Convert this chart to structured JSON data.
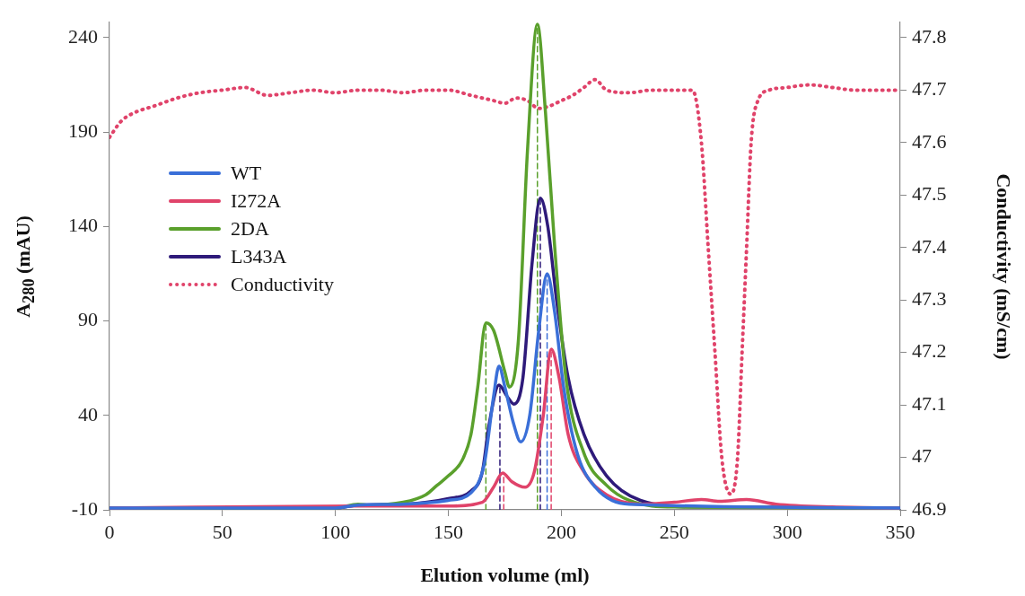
{
  "chart_data": {
    "type": "line",
    "xlabel": "Elution volume (ml)",
    "ylabel": "A$_{280}$ (mAU)",
    "y2label": "Conductivity (mS/cm)",
    "xlim": [
      0,
      350
    ],
    "xticks": [
      0,
      50,
      100,
      150,
      200,
      250,
      300,
      350
    ],
    "ylim": [
      -10,
      248
    ],
    "yticks": [
      -10,
      40,
      90,
      140,
      190,
      240
    ],
    "y2lim": [
      46.9,
      47.829
    ],
    "y2ticks": [
      {
        "value": 46.9,
        "label": "46.9"
      },
      {
        "value": 47,
        "label": "47"
      },
      {
        "value": 47.1,
        "label": "47.1"
      },
      {
        "value": 47.2,
        "label": "47.2"
      },
      {
        "value": 47.3,
        "label": "47.3"
      },
      {
        "value": 47.4,
        "label": "47.4"
      },
      {
        "value": 47.5,
        "label": "47.5"
      },
      {
        "value": 47.6,
        "label": "47.6"
      },
      {
        "value": 47.7,
        "label": "47.7"
      },
      {
        "value": 47.8,
        "label": "47.8"
      }
    ],
    "grid": false,
    "legend": "top left",
    "marker": "none",
    "line_style": "solid",
    "series": [
      {
        "name": "WT",
        "color": "#3a6fd8",
        "x": [
          0,
          100,
          110,
          130,
          150,
          160,
          166,
          170,
          172.4,
          175,
          179,
          182,
          186,
          190,
          193.7,
          197,
          201,
          207,
          215,
          230,
          350
        ],
        "values": [
          -9,
          -9,
          -7.5,
          -7,
          -5,
          -1,
          15,
          50,
          66,
          55,
          35,
          26,
          40,
          85,
          115,
          95,
          55,
          20,
          2,
          -7,
          -9
        ]
      },
      {
        "name": "I272A",
        "color": "#e0436a",
        "x": [
          0,
          110,
          150,
          165,
          170,
          174,
          178,
          184,
          188,
          192,
          195.5,
          199,
          203,
          210,
          220,
          235,
          250,
          262,
          270,
          282,
          295,
          320,
          350
        ],
        "values": [
          -9,
          -8,
          -8,
          -6,
          2,
          9.5,
          5,
          2,
          10,
          40,
          75,
          60,
          30,
          10,
          -2,
          -7,
          -6,
          -4.5,
          -5.5,
          -4.5,
          -7,
          -8.5,
          -9
        ]
      },
      {
        "name": "2DA",
        "color": "#5aa02c",
        "x": [
          0,
          100,
          110,
          115,
          130,
          140,
          145,
          150,
          156,
          160,
          163,
          166.6,
          170,
          175,
          177,
          181,
          185,
          189.4,
          193,
          197,
          202,
          210,
          220,
          230,
          250,
          350
        ],
        "values": [
          -9,
          -9,
          -7,
          -7.5,
          -6,
          -2,
          3,
          8,
          16,
          30,
          55,
          89,
          85,
          63,
          55,
          80,
          180,
          247,
          200,
          130,
          60,
          20,
          3,
          -5,
          -8.5,
          -9
        ]
      },
      {
        "name": "L343A",
        "color": "#2e1a7a",
        "x": [
          0,
          100,
          110,
          130,
          150,
          160,
          165,
          168,
          172.4,
          176,
          179,
          183,
          187,
          190.7,
          194,
          198,
          203,
          210,
          220,
          235,
          260,
          350
        ],
        "values": [
          -9,
          -9,
          -7.5,
          -7,
          -4,
          0,
          10,
          35,
          56,
          50,
          46,
          60,
          120,
          155,
          140,
          100,
          60,
          30,
          8,
          -5,
          -8.5,
          -9
        ]
      },
      {
        "name": "Conductivity",
        "color": "#e0436a",
        "axis": "y2",
        "line_style": "dotted",
        "x": [
          0,
          5,
          10,
          20,
          30,
          40,
          50,
          60,
          70,
          80,
          90,
          100,
          110,
          120,
          130,
          140,
          150,
          160,
          170,
          175,
          180,
          185,
          190,
          195,
          200,
          205,
          210,
          215,
          220,
          230,
          240,
          250,
          258,
          262,
          265,
          268,
          271,
          275,
          278,
          280,
          282,
          284,
          287,
          292,
          300,
          310,
          320,
          330,
          340,
          350
        ],
        "values": [
          47.61,
          47.64,
          47.655,
          47.67,
          47.685,
          47.695,
          47.7,
          47.705,
          47.69,
          47.695,
          47.7,
          47.695,
          47.7,
          47.7,
          47.695,
          47.7,
          47.7,
          47.69,
          47.68,
          47.675,
          47.685,
          47.68,
          47.665,
          47.67,
          47.68,
          47.69,
          47.705,
          47.72,
          47.7,
          47.695,
          47.7,
          47.7,
          47.7,
          47.6,
          47.4,
          47.2,
          47,
          46.93,
          47,
          47.2,
          47.4,
          47.6,
          47.68,
          47.7,
          47.705,
          47.71,
          47.705,
          47.7,
          47.7,
          47.7
        ]
      },
      {
        "color": "#5aa02c",
        "line_style": "dashed",
        "x": [
          166.6,
          166.6
        ],
        "values": [
          -10,
          89
        ]
      },
      {
        "color": "#5aa02c",
        "line_style": "dashed",
        "x": [
          189.4,
          189.4
        ],
        "values": [
          -10,
          247
        ]
      },
      {
        "color": "#2e1a7a",
        "line_style": "dashed",
        "x": [
          172.8,
          172.8
        ],
        "values": [
          -10,
          55
        ]
      },
      {
        "color": "#2e1a7a",
        "line_style": "dashed",
        "x": [
          190.7,
          190.7
        ],
        "values": [
          -10,
          155
        ]
      },
      {
        "color": "#3a6fd8",
        "line_style": "dashed",
        "x": [
          193.7,
          193.7
        ],
        "values": [
          -10,
          115
        ]
      },
      {
        "color": "#e0436a",
        "line_style": "dashed",
        "x": [
          174.5,
          174.5
        ],
        "values": [
          -10,
          9.5
        ]
      },
      {
        "color": "#e0436a",
        "line_style": "dashed",
        "x": [
          195.5,
          195.5
        ],
        "values": [
          -10,
          75
        ]
      }
    ]
  }
}
